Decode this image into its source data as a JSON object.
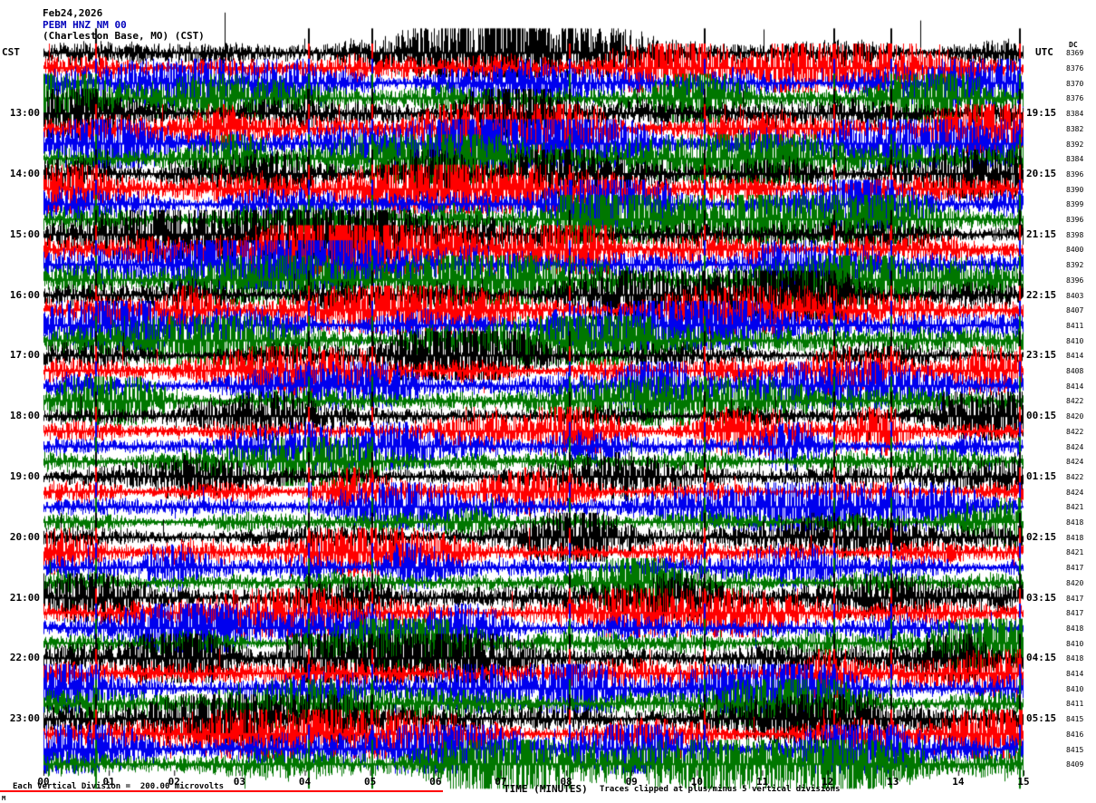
{
  "header": {
    "date": "Feb24,2026",
    "station": "PEBM HNZ NM 00",
    "station_info": "(Charleston Base, MO) (CST)",
    "left_tz": "CST",
    "right_tz": "UTC",
    "dc_label": "DC"
  },
  "footer": {
    "scale_note": "Each Vertical Division =  200.00 microvolts",
    "time_axis_label": "TIME (MINUTES)",
    "clip_note": "Traces clipped at plus/minus 5 vertical divisions",
    "corner_mark": "M"
  },
  "chart_data": {
    "type": "line",
    "title": "PEBM HNZ NM 00 helicorder seismogram, Feb24,2026",
    "xlabel": "TIME (MINUTES)",
    "ylabel": "",
    "x_range_minutes": [
      0,
      15
    ],
    "minutes_per_line": 15,
    "x_ticks": [
      "00",
      "01",
      "02",
      "03",
      "04",
      "05",
      "06",
      "07",
      "08",
      "09",
      "10",
      "11",
      "12",
      "13",
      "14",
      "15"
    ],
    "trace_colors": [
      "#000000",
      "#ff0000",
      "#0000ee",
      "#007700"
    ],
    "clip_divisions": 5,
    "microvolts_per_division": 200.0,
    "event_minutes": [
      0.79,
      4.05,
      5.02,
      8.04,
      10.1,
      12.09,
      12.96,
      14.93
    ],
    "rows": [
      {
        "l": "",
        "r": "",
        "d": 8369
      },
      {
        "l": "",
        "r": "",
        "d": 8376
      },
      {
        "l": "",
        "r": "",
        "d": 8370
      },
      {
        "l": "",
        "r": "",
        "d": 8376
      },
      {
        "l": "13:00",
        "r": "19:15",
        "d": 8384
      },
      {
        "l": "",
        "r": "",
        "d": 8382
      },
      {
        "l": "",
        "r": "",
        "d": 8392
      },
      {
        "l": "",
        "r": "",
        "d": 8384
      },
      {
        "l": "14:00",
        "r": "20:15",
        "d": 8396
      },
      {
        "l": "",
        "r": "",
        "d": 8390
      },
      {
        "l": "",
        "r": "",
        "d": 8399
      },
      {
        "l": "",
        "r": "",
        "d": 8396
      },
      {
        "l": "15:00",
        "r": "21:15",
        "d": 8398
      },
      {
        "l": "",
        "r": "",
        "d": 8400
      },
      {
        "l": "",
        "r": "",
        "d": 8392
      },
      {
        "l": "",
        "r": "",
        "d": 8396
      },
      {
        "l": "16:00",
        "r": "22:15",
        "d": 8403
      },
      {
        "l": "",
        "r": "",
        "d": 8407
      },
      {
        "l": "",
        "r": "",
        "d": 8411
      },
      {
        "l": "",
        "r": "",
        "d": 8410
      },
      {
        "l": "17:00",
        "r": "23:15",
        "d": 8414
      },
      {
        "l": "",
        "r": "",
        "d": 8408
      },
      {
        "l": "",
        "r": "",
        "d": 8414
      },
      {
        "l": "",
        "r": "",
        "d": 8422
      },
      {
        "l": "18:00",
        "r": "00:15",
        "d": 8420
      },
      {
        "l": "",
        "r": "",
        "d": 8422
      },
      {
        "l": "",
        "r": "",
        "d": 8424
      },
      {
        "l": "",
        "r": "",
        "d": 8424
      },
      {
        "l": "19:00",
        "r": "01:15",
        "d": 8422
      },
      {
        "l": "",
        "r": "",
        "d": 8424
      },
      {
        "l": "",
        "r": "",
        "d": 8421
      },
      {
        "l": "",
        "r": "",
        "d": 8418
      },
      {
        "l": "20:00",
        "r": "02:15",
        "d": 8418
      },
      {
        "l": "",
        "r": "",
        "d": 8421
      },
      {
        "l": "",
        "r": "",
        "d": 8417
      },
      {
        "l": "",
        "r": "",
        "d": 8420
      },
      {
        "l": "21:00",
        "r": "03:15",
        "d": 8417
      },
      {
        "l": "",
        "r": "",
        "d": 8417
      },
      {
        "l": "",
        "r": "",
        "d": 8418
      },
      {
        "l": "",
        "r": "",
        "d": 8410
      },
      {
        "l": "22:00",
        "r": "04:15",
        "d": 8418
      },
      {
        "l": "",
        "r": "",
        "d": 8414
      },
      {
        "l": "",
        "r": "",
        "d": 8410
      },
      {
        "l": "",
        "r": "",
        "d": 8411
      },
      {
        "l": "23:00",
        "r": "05:15",
        "d": 8415
      },
      {
        "l": "",
        "r": "",
        "d": 8416
      },
      {
        "l": "",
        "r": "",
        "d": 8415
      },
      {
        "l": "",
        "r": "",
        "d": 8409
      }
    ]
  }
}
